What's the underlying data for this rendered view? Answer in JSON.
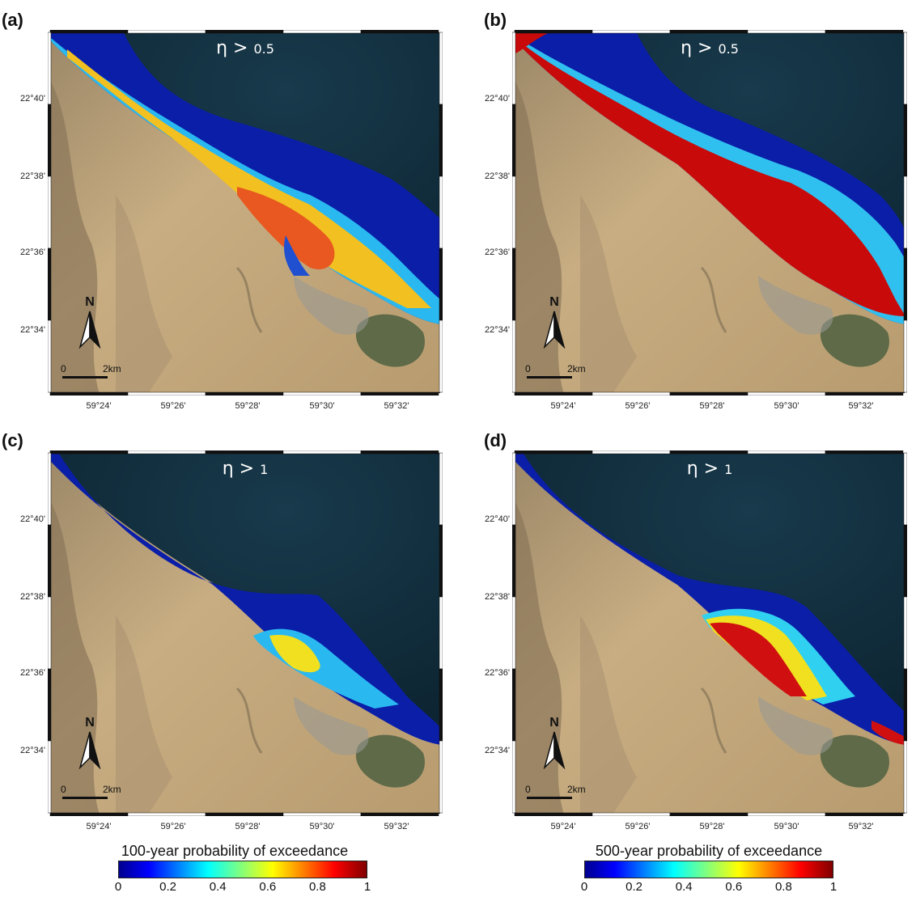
{
  "panels": [
    {
      "label": "(a)",
      "eta_symbol": "η >",
      "threshold": "0.5"
    },
    {
      "label": "(b)",
      "eta_symbol": "η >",
      "threshold": "0.5"
    },
    {
      "label": "(c)",
      "eta_symbol": "η >",
      "threshold": "1"
    },
    {
      "label": "(d)",
      "eta_symbol": "η >",
      "threshold": "1"
    }
  ],
  "lat_labels": [
    "22°40'",
    "22°38'",
    "22°36'",
    "22°34'"
  ],
  "lon_labels": [
    "59°24'",
    "59°26'",
    "59°28'",
    "59°30'",
    "59°32'"
  ],
  "north_letter": "N",
  "scale_bar": {
    "zero": "0",
    "distance": "2km"
  },
  "colorbars": [
    {
      "title": "100-year probability of exceedance",
      "ticks": [
        "0",
        "0.2",
        "0.4",
        "0.6",
        "0.8",
        "1"
      ]
    },
    {
      "title": "500-year probability of exceedance",
      "ticks": [
        "0",
        "0.2",
        "0.4",
        "0.6",
        "0.8",
        "1"
      ]
    }
  ],
  "colors": {
    "sea": "#0e2a3a",
    "land": "#c4a67a",
    "low_prob": "#0a1ea8",
    "high_prob": "#c80a0a"
  }
}
